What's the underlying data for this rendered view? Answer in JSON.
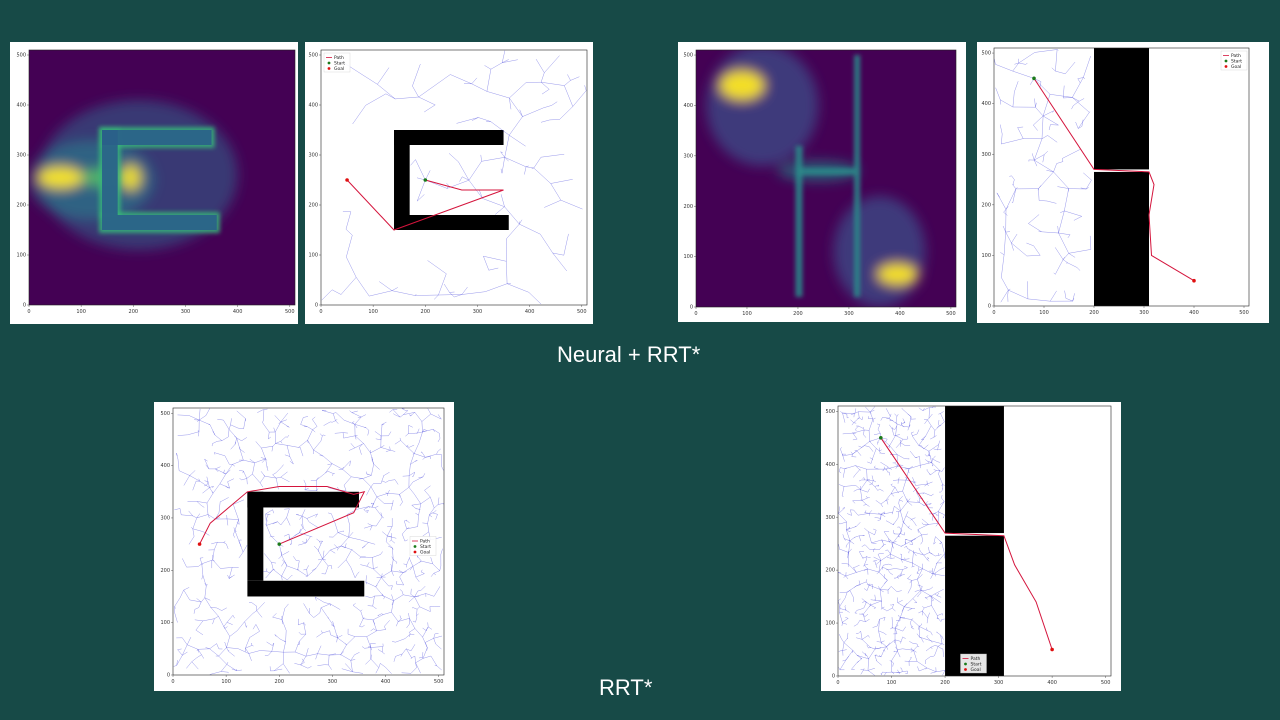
{
  "captions": {
    "top": "Neural + RRT*",
    "bottom": "RRT*"
  },
  "legend": [
    "Path",
    "Start",
    "Goal"
  ],
  "axis_ticks": {
    "x": [
      "0",
      "100",
      "200",
      "300",
      "400",
      "500"
    ],
    "y": [
      "0",
      "100",
      "200",
      "300",
      "400",
      "500"
    ]
  },
  "colors": {
    "background": "#174a47",
    "tree": "#3a3ad8",
    "path": "#d4143c",
    "start": "#1a7a1a",
    "goal": "#e01010",
    "heat_low": "#440154",
    "heat_mid": "#21918c",
    "heat_high": "#fde725",
    "obstacle": "#000000"
  },
  "panels": [
    {
      "id": "c-heatmap",
      "kind": "heatmap",
      "map": "C"
    },
    {
      "id": "c-neural-tree",
      "kind": "tree",
      "map": "C",
      "density": 140,
      "start": [
        200,
        250
      ],
      "goal": [
        50,
        250
      ],
      "path": [
        [
          200,
          250
        ],
        [
          270,
          230
        ],
        [
          350,
          230
        ],
        [
          140,
          150
        ],
        [
          50,
          250
        ]
      ],
      "legend_pos": "top-left"
    },
    {
      "id": "h-heatmap",
      "kind": "heatmap",
      "map": "H"
    },
    {
      "id": "h-neural-tree",
      "kind": "tree",
      "map": "H",
      "density": 160,
      "start": [
        80,
        450
      ],
      "goal": [
        400,
        50
      ],
      "path": [
        [
          80,
          450
        ],
        [
          200,
          270
        ],
        [
          310,
          265
        ],
        [
          320,
          240
        ],
        [
          310,
          180
        ],
        [
          315,
          100
        ],
        [
          400,
          50
        ]
      ],
      "legend_pos": "top-right"
    },
    {
      "id": "c-rrt-tree",
      "kind": "tree",
      "map": "C",
      "density": 1100,
      "start": [
        200,
        250
      ],
      "goal": [
        50,
        250
      ],
      "path": [
        [
          200,
          250
        ],
        [
          340,
          310
        ],
        [
          360,
          350
        ],
        [
          340,
          345
        ],
        [
          290,
          360
        ],
        [
          200,
          360
        ],
        [
          140,
          350
        ],
        [
          70,
          290
        ],
        [
          50,
          250
        ]
      ],
      "legend_pos": "right"
    },
    {
      "id": "h-rrt-tree",
      "kind": "tree",
      "map": "H",
      "density": 1100,
      "start": [
        80,
        450
      ],
      "goal": [
        400,
        50
      ],
      "path": [
        [
          80,
          450
        ],
        [
          200,
          270
        ],
        [
          310,
          265
        ],
        [
          330,
          210
        ],
        [
          370,
          140
        ],
        [
          400,
          50
        ]
      ],
      "legend_pos": "bottom"
    }
  ]
}
